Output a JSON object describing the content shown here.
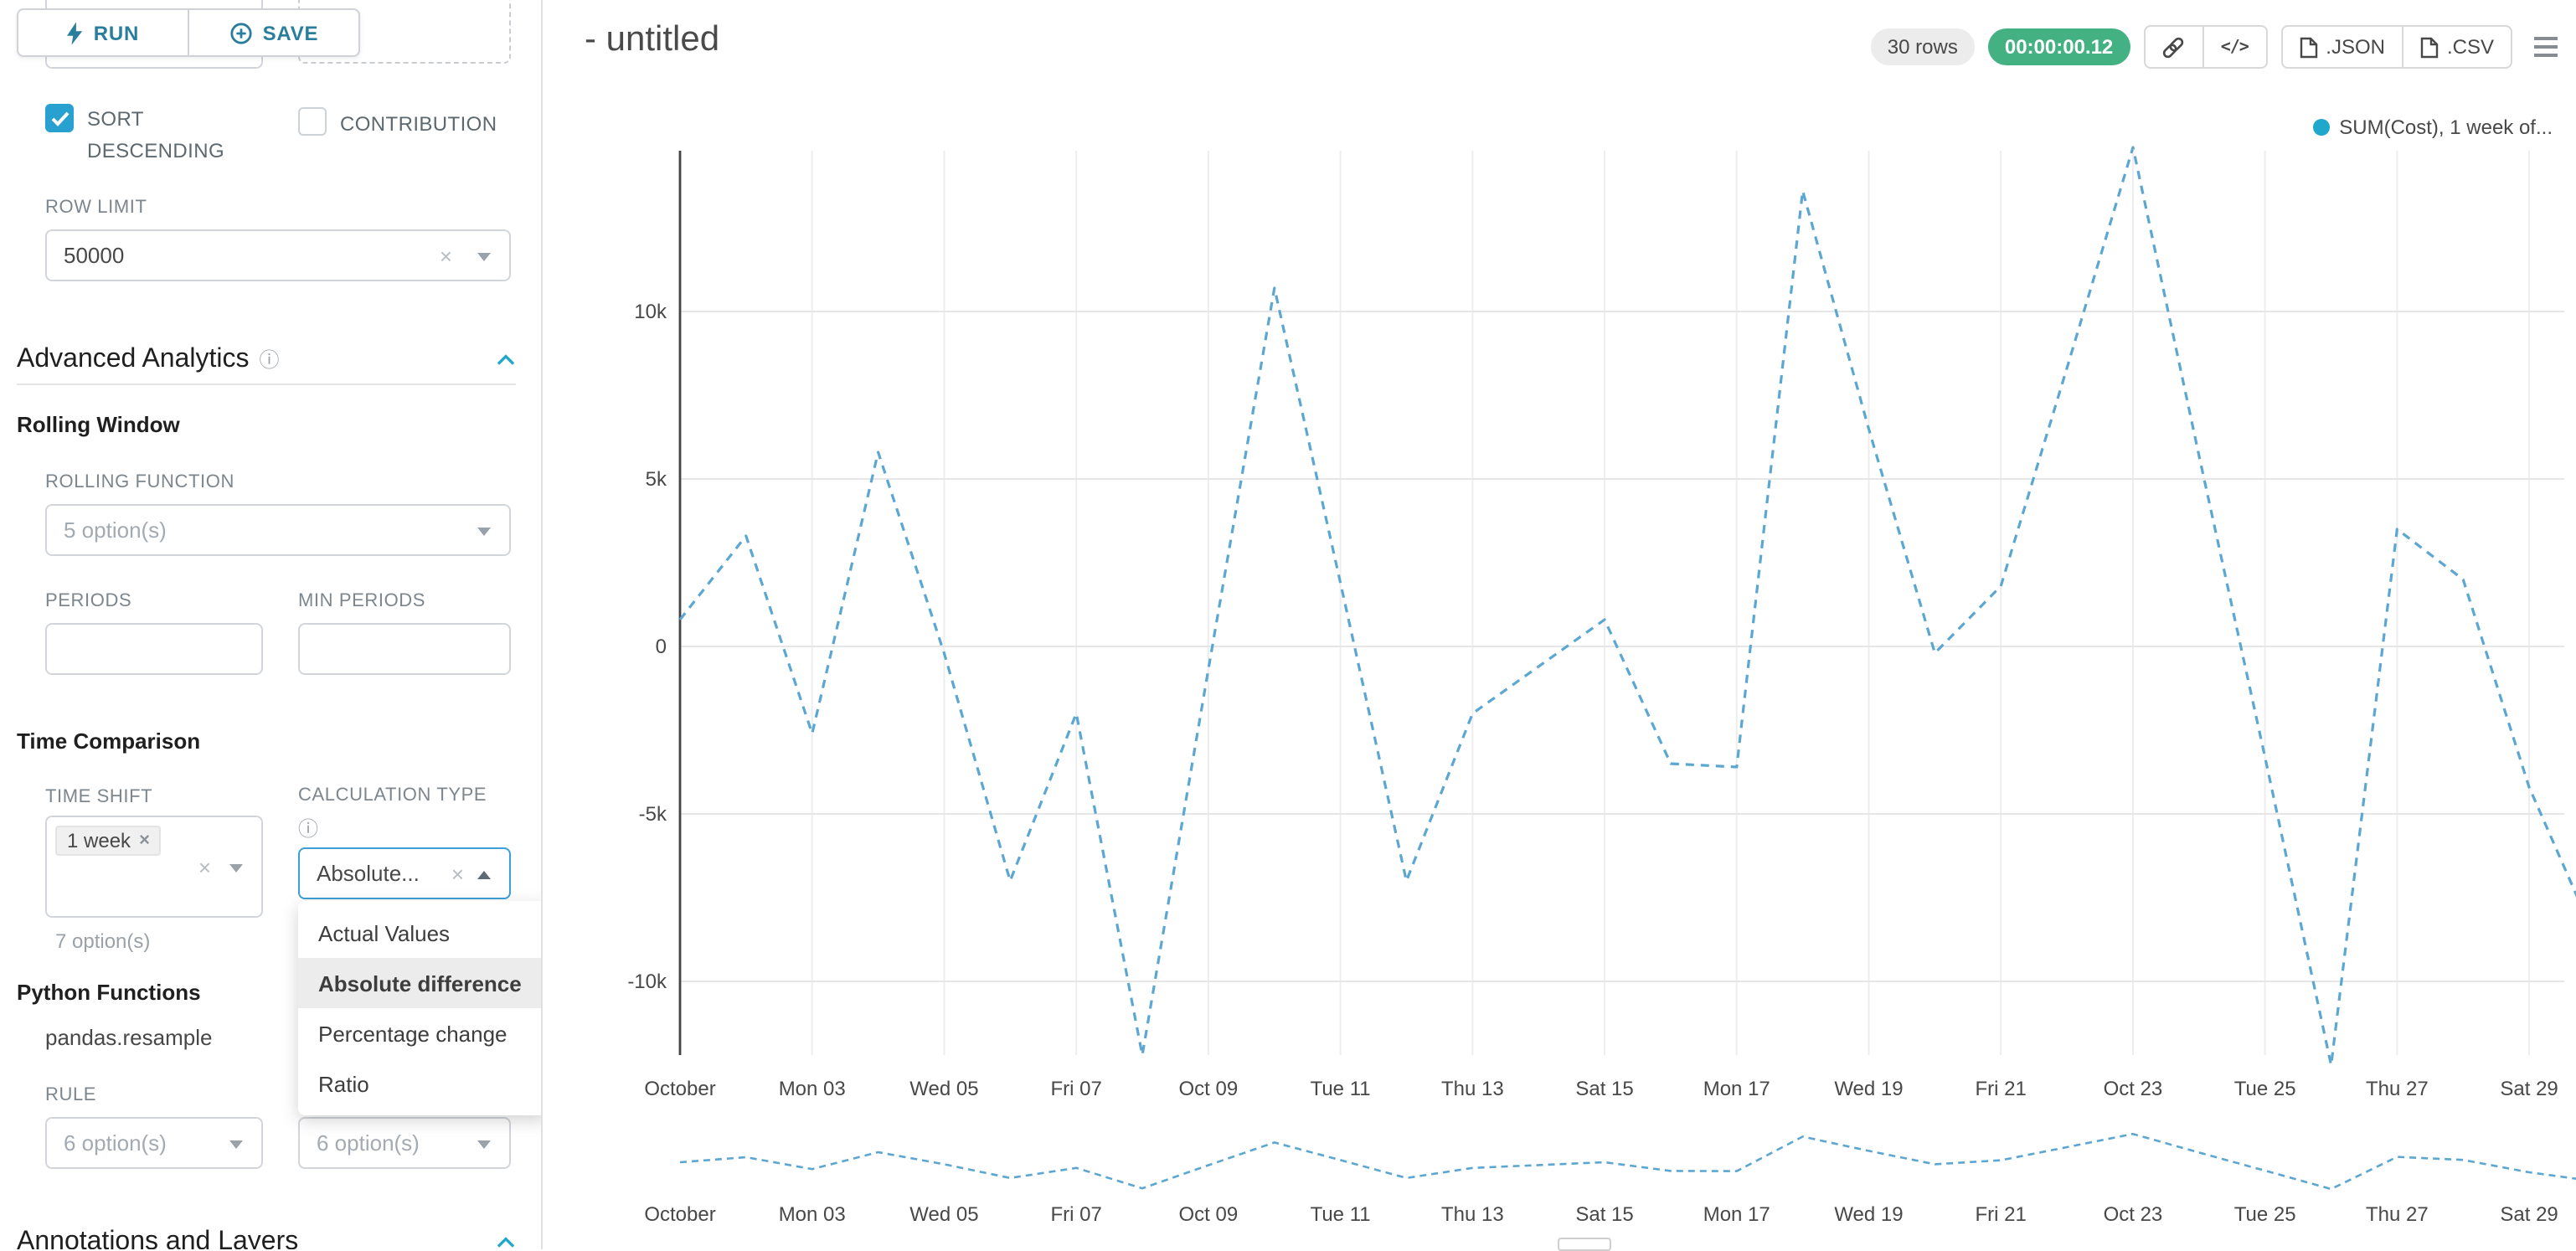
{
  "colors": {
    "accent": "#20a7c9",
    "timer_green": "#44b183",
    "checkbox_blue": "#28a0d0",
    "focus_blue": "#3d9fd6"
  },
  "toolbar": {
    "run": "RUN",
    "save": "SAVE"
  },
  "controls": {
    "clipped_option": "option(s)",
    "sort_descending": "SORT DESCENDING",
    "contribution": "CONTRIBUTION",
    "row_limit_label": "ROW LIMIT",
    "row_limit_value": "50000",
    "advanced_analytics": "Advanced Analytics",
    "rolling_window": "Rolling Window",
    "rolling_function_label": "ROLLING FUNCTION",
    "rolling_function_placeholder": "5 option(s)",
    "periods_label": "PERIODS",
    "min_periods_label": "MIN PERIODS",
    "time_comparison": "Time Comparison",
    "time_shift_label": "TIME SHIFT",
    "time_shift_tag": "1 week",
    "time_shift_helper": "7 option(s)",
    "calculation_type_label": "CALCULATION TYPE",
    "calculation_type_value": "Absolute...",
    "python_functions": "Python Functions",
    "pandas_resample": "pandas.resample",
    "rule_label": "RULE",
    "rule_placeholder": "6 option(s)",
    "rule_placeholder_2": "6 option(s)",
    "annotations_layers": "Annotations and Layers"
  },
  "dropdown": {
    "items": [
      "Actual Values",
      "Absolute difference",
      "Percentage change",
      "Ratio"
    ],
    "selected": "Absolute difference"
  },
  "header": {
    "title": "- untitled",
    "rows_badge": "30 rows",
    "timer_badge": "00:00:00.12",
    "json_button": ".JSON",
    "csv_button": ".CSV"
  },
  "chart_data": {
    "type": "line",
    "line_style": "dashed",
    "title": "",
    "xlabel": "",
    "ylabel": "",
    "legend": "SUM(Cost), 1 week of...",
    "legend_position": "top-right",
    "grid": true,
    "row_count": 30,
    "ylim": [
      -12200,
      14800
    ],
    "y_tick_labels": [
      "10k",
      "5k",
      "0",
      "-5k",
      "-10k"
    ],
    "y_tick_values": [
      10000,
      5000,
      0,
      -5000,
      -10000
    ],
    "x_tick_labels": [
      "October",
      "Mon 03",
      "Wed 05",
      "Fri 07",
      "Oct 09",
      "Tue 11",
      "Thu 13",
      "Sat 15",
      "Mon 17",
      "Wed 19",
      "Fri 21",
      "Oct 23",
      "Tue 25",
      "Thu 27",
      "Sat 29"
    ],
    "series": [
      {
        "name": "SUM(Cost), 1 week offset (Absolute difference)",
        "x": [
          "Oct 01",
          "Oct 02",
          "Oct 03",
          "Oct 04",
          "Oct 05",
          "Oct 06",
          "Oct 07",
          "Oct 08",
          "Oct 09",
          "Oct 10",
          "Oct 11",
          "Oct 12",
          "Oct 13",
          "Oct 14",
          "Oct 15",
          "Oct 16",
          "Oct 17",
          "Oct 18",
          "Oct 19",
          "Oct 20",
          "Oct 21",
          "Oct 22",
          "Oct 23",
          "Oct 24",
          "Oct 25",
          "Oct 26",
          "Oct 27",
          "Oct 28",
          "Oct 29",
          "Oct 30"
        ],
        "values": [
          800,
          3300,
          -2600,
          5800,
          -200,
          -7000,
          -2000,
          -12200,
          -700,
          10700,
          1900,
          -7000,
          -2000,
          -600,
          800,
          -3500,
          -3600,
          13600,
          6500,
          -200,
          1800,
          8300,
          14900,
          5700,
          -3300,
          -12500,
          3500,
          2000,
          -4200,
          -8700
        ]
      }
    ],
    "has_preview_strip": true,
    "colors": {
      "line": "#5ba7d1",
      "legend_dot": "#1fa8c9"
    }
  }
}
